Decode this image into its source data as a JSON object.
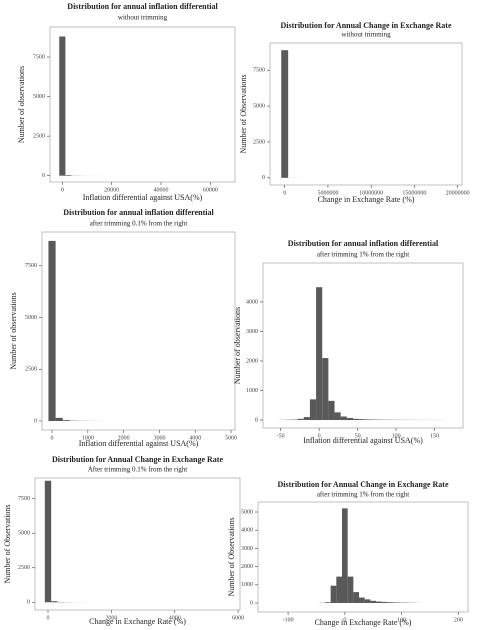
{
  "chart_data": [
    {
      "type": "histogram",
      "title": "Distribution for annual inflation differential",
      "subtitle": "without trimming",
      "x_label": "Inflation differential against USA(%)",
      "y_label": "Number of observations",
      "color": "#595959",
      "bins": [
        -1250,
        1250,
        3750,
        6250,
        8750,
        11250,
        13750,
        16250,
        18750,
        21250,
        23750,
        26250,
        28750,
        31250,
        33750,
        36250,
        38750,
        41250,
        43750,
        46250,
        48750,
        51250,
        53750,
        56250,
        58750,
        61250,
        63750,
        66250,
        68750
      ],
      "counts": [
        8800,
        40,
        10,
        5,
        3,
        2,
        1,
        1,
        0,
        0,
        0,
        0,
        0,
        0,
        0,
        0,
        0,
        0,
        0,
        0,
        0,
        0,
        0,
        0,
        0,
        0,
        0,
        1
      ],
      "xlim": [
        -5000,
        70000
      ],
      "ylim": [
        -400,
        9400
      ],
      "xticks": [
        0,
        20000,
        40000,
        60000
      ],
      "yticks": [
        0,
        2500,
        5000,
        7500
      ]
    },
    {
      "type": "histogram",
      "title": "Distribution for Annual Change in Exchange Rate",
      "subtitle": "without trimming",
      "x_label": "Change in Exchange Rate (%)",
      "y_label": "Number of Observations",
      "color": "#595959",
      "bins": [
        -400000,
        400000,
        1200000,
        2000000,
        2800000,
        3600000,
        4400000,
        5200000,
        6000000,
        6800000,
        7600000,
        8400000,
        9200000,
        10000000,
        10800000,
        11600000,
        12400000,
        13200000,
        14000000,
        14800000,
        15600000,
        16400000,
        17200000,
        18000000,
        18800000,
        19600000,
        20400000
      ],
      "counts": [
        8900,
        5,
        2,
        1,
        0,
        0,
        0,
        0,
        0,
        0,
        0,
        0,
        0,
        0,
        0,
        0,
        0,
        0,
        0,
        0,
        0,
        0,
        0,
        0,
        0,
        1
      ],
      "xlim": [
        -1700000,
        20500000
      ],
      "ylim": [
        -500,
        9400
      ],
      "xticks": [
        0,
        5000000,
        10000000,
        15000000,
        20000000
      ],
      "yticks": [
        0,
        2500,
        5000,
        7500
      ]
    },
    {
      "type": "histogram",
      "title": "Distribution for annual inflation differential",
      "subtitle": "after trimming 0.1% from the right",
      "x_label": "Inflation differential against USA(%)",
      "y_label": "Number of observations",
      "color": "#595959",
      "bins": [
        -100,
        100,
        300,
        500,
        700,
        900,
        1100,
        1300,
        1500,
        1700,
        1900,
        2100,
        2300,
        2500,
        2700,
        2900,
        3100,
        3300,
        3500,
        3700,
        3900,
        4100,
        4300,
        4500,
        4700,
        4900
      ],
      "counts": [
        8700,
        150,
        40,
        15,
        8,
        5,
        3,
        2,
        1,
        1,
        0,
        0,
        0,
        0,
        0,
        0,
        0,
        0,
        0,
        0,
        0,
        0,
        0,
        0,
        1
      ],
      "xlim": [
        -280,
        5110
      ],
      "ylim": [
        -435,
        9130
      ],
      "xticks": [
        0,
        1000,
        2000,
        3000,
        4000,
        5000
      ],
      "yticks": [
        0,
        2500,
        5000,
        7500
      ]
    },
    {
      "type": "histogram",
      "title": "Distribution for annual inflation differential",
      "subtitle": "after trimming 1% from the right",
      "x_label": "Inflation differential against USA(%)",
      "y_label": "Number of observations",
      "color": "#595959",
      "bins": [
        -52,
        -44,
        -36,
        -28,
        -20,
        -12,
        -4,
        4,
        12,
        20,
        28,
        36,
        44,
        52,
        60,
        68,
        76,
        84,
        92,
        100,
        108,
        116,
        124,
        132,
        140,
        148,
        156,
        164
      ],
      "counts": [
        5,
        10,
        15,
        40,
        100,
        700,
        4500,
        2100,
        650,
        260,
        120,
        70,
        40,
        30,
        20,
        15,
        12,
        10,
        8,
        7,
        6,
        5,
        5,
        4,
        3,
        3,
        2
      ],
      "xlim": [
        -73,
        187
      ],
      "ylim": [
        -270,
        5320
      ],
      "xticks": [
        -50,
        0,
        50,
        100,
        150
      ],
      "yticks": [
        0,
        1000,
        2000,
        3000,
        4000
      ]
    },
    {
      "type": "histogram",
      "title": "Distribution for Annual Change in Exchange Rate",
      "subtitle": "After trimming 0.1% from the right",
      "x_label": "Change in Exchange Rate (%)",
      "y_label": "Number of Observations",
      "color": "#595959",
      "bins": [
        -100,
        100,
        300,
        500,
        700,
        900,
        1100,
        1300,
        1500,
        1700,
        1900,
        2100,
        2300,
        2500,
        2700,
        2900,
        3100,
        3300,
        3500,
        3700,
        3900,
        4100,
        4300,
        4500,
        4700,
        4900,
        5100,
        5300,
        5500,
        5700,
        5900
      ],
      "counts": [
        8800,
        80,
        20,
        10,
        5,
        3,
        2,
        1,
        0,
        0,
        0,
        0,
        0,
        0,
        0,
        0,
        0,
        0,
        0,
        0,
        0,
        0,
        0,
        0,
        0,
        0,
        0,
        0,
        0,
        1
      ],
      "xlim": [
        -410,
        6060
      ],
      "ylim": [
        -560,
        9000
      ],
      "xticks": [
        0,
        2000,
        4000,
        6000
      ],
      "yticks": [
        0,
        2500,
        5000,
        7500
      ]
    },
    {
      "type": "histogram",
      "title": "Distribution for Annual Change in Exchange Rate",
      "subtitle": "after trimming 1% from the right",
      "x_label": "Change in Exchange Rate (%)",
      "y_label": "Number of Observations",
      "color": "#595959",
      "bins": [
        -45,
        -35,
        -25,
        -15,
        -5,
        5,
        15,
        25,
        35,
        45,
        55,
        65,
        75,
        85,
        95,
        105,
        115,
        125,
        135
      ],
      "counts": [
        10,
        40,
        950,
        1450,
        5200,
        1450,
        600,
        300,
        200,
        120,
        80,
        60,
        40,
        30,
        20,
        15,
        10,
        5
      ],
      "xlim": [
        -153,
        217
      ],
      "ylim": [
        -495,
        5550
      ],
      "xticks": [
        -100,
        0,
        100,
        200
      ],
      "yticks": [
        0,
        1000,
        2000,
        3000,
        4000,
        5000
      ]
    }
  ]
}
